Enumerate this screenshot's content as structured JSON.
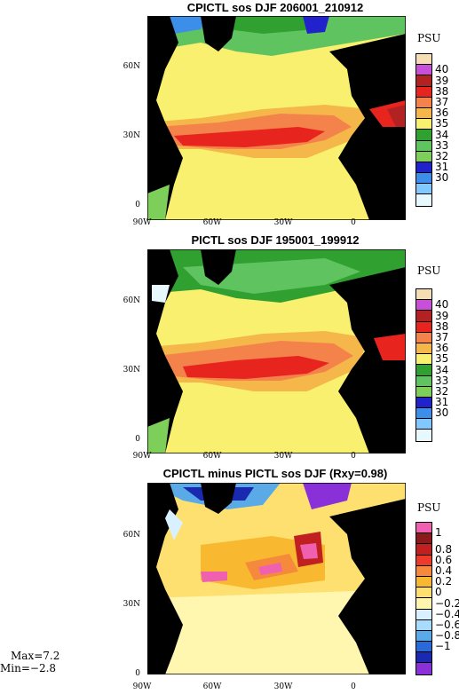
{
  "panels": [
    {
      "title": "CPICTL sos DJF 206001_210912",
      "unit": "PSU",
      "colorbar_labels": [
        "40",
        "39",
        "38",
        "37",
        "36",
        "35",
        "34",
        "33",
        "32",
        "31",
        "30"
      ],
      "colorbar_colors": [
        "#f5deb3",
        "#c84fd8",
        "#b22222",
        "#e8241f",
        "#f4824b",
        "#f5b74a",
        "#f8f06e",
        "#30a030",
        "#5fc45f",
        "#7ecf5a",
        "#2222cc",
        "#3c8ee8",
        "#80c8ff",
        "#e8f8ff"
      ]
    },
    {
      "title": "PICTL sos DJF 195001_199912",
      "unit": "PSU",
      "colorbar_labels": [
        "40",
        "39",
        "38",
        "37",
        "36",
        "35",
        "34",
        "33",
        "32",
        "31",
        "30"
      ],
      "colorbar_colors": [
        "#f5deb3",
        "#c84fd8",
        "#b22222",
        "#e8241f",
        "#f4824b",
        "#f5b74a",
        "#f8f06e",
        "#30a030",
        "#5fc45f",
        "#7ecf5a",
        "#2222cc",
        "#3c8ee8",
        "#80c8ff",
        "#e8f8ff"
      ]
    },
    {
      "title": "CPICTL minus PICTL sos DJF (Rxy=0.98)",
      "unit": "PSU",
      "colorbar_labels": [
        "1",
        "0.8",
        "0.6",
        "0.4",
        "0.2",
        "0",
        "−0.2",
        "−0.4",
        "−0.6",
        "−0.8",
        "−1"
      ],
      "colorbar_colors": [
        "#f060b0",
        "#8b1a1a",
        "#c02020",
        "#ee3a2a",
        "#f58a3c",
        "#f8b830",
        "#fde070",
        "#fff6b0",
        "#d8f0ff",
        "#a8dcff",
        "#5aaae8",
        "#2a6ad8",
        "#1a2ab0",
        "#8a30d8"
      ]
    }
  ],
  "axes": {
    "lat_labels": [
      "60N",
      "30N",
      "0"
    ],
    "lon_labels": [
      "90W",
      "60W",
      "30W",
      "0"
    ]
  },
  "stats": {
    "max": "Max=7.2",
    "min": "Min=−2.8"
  }
}
